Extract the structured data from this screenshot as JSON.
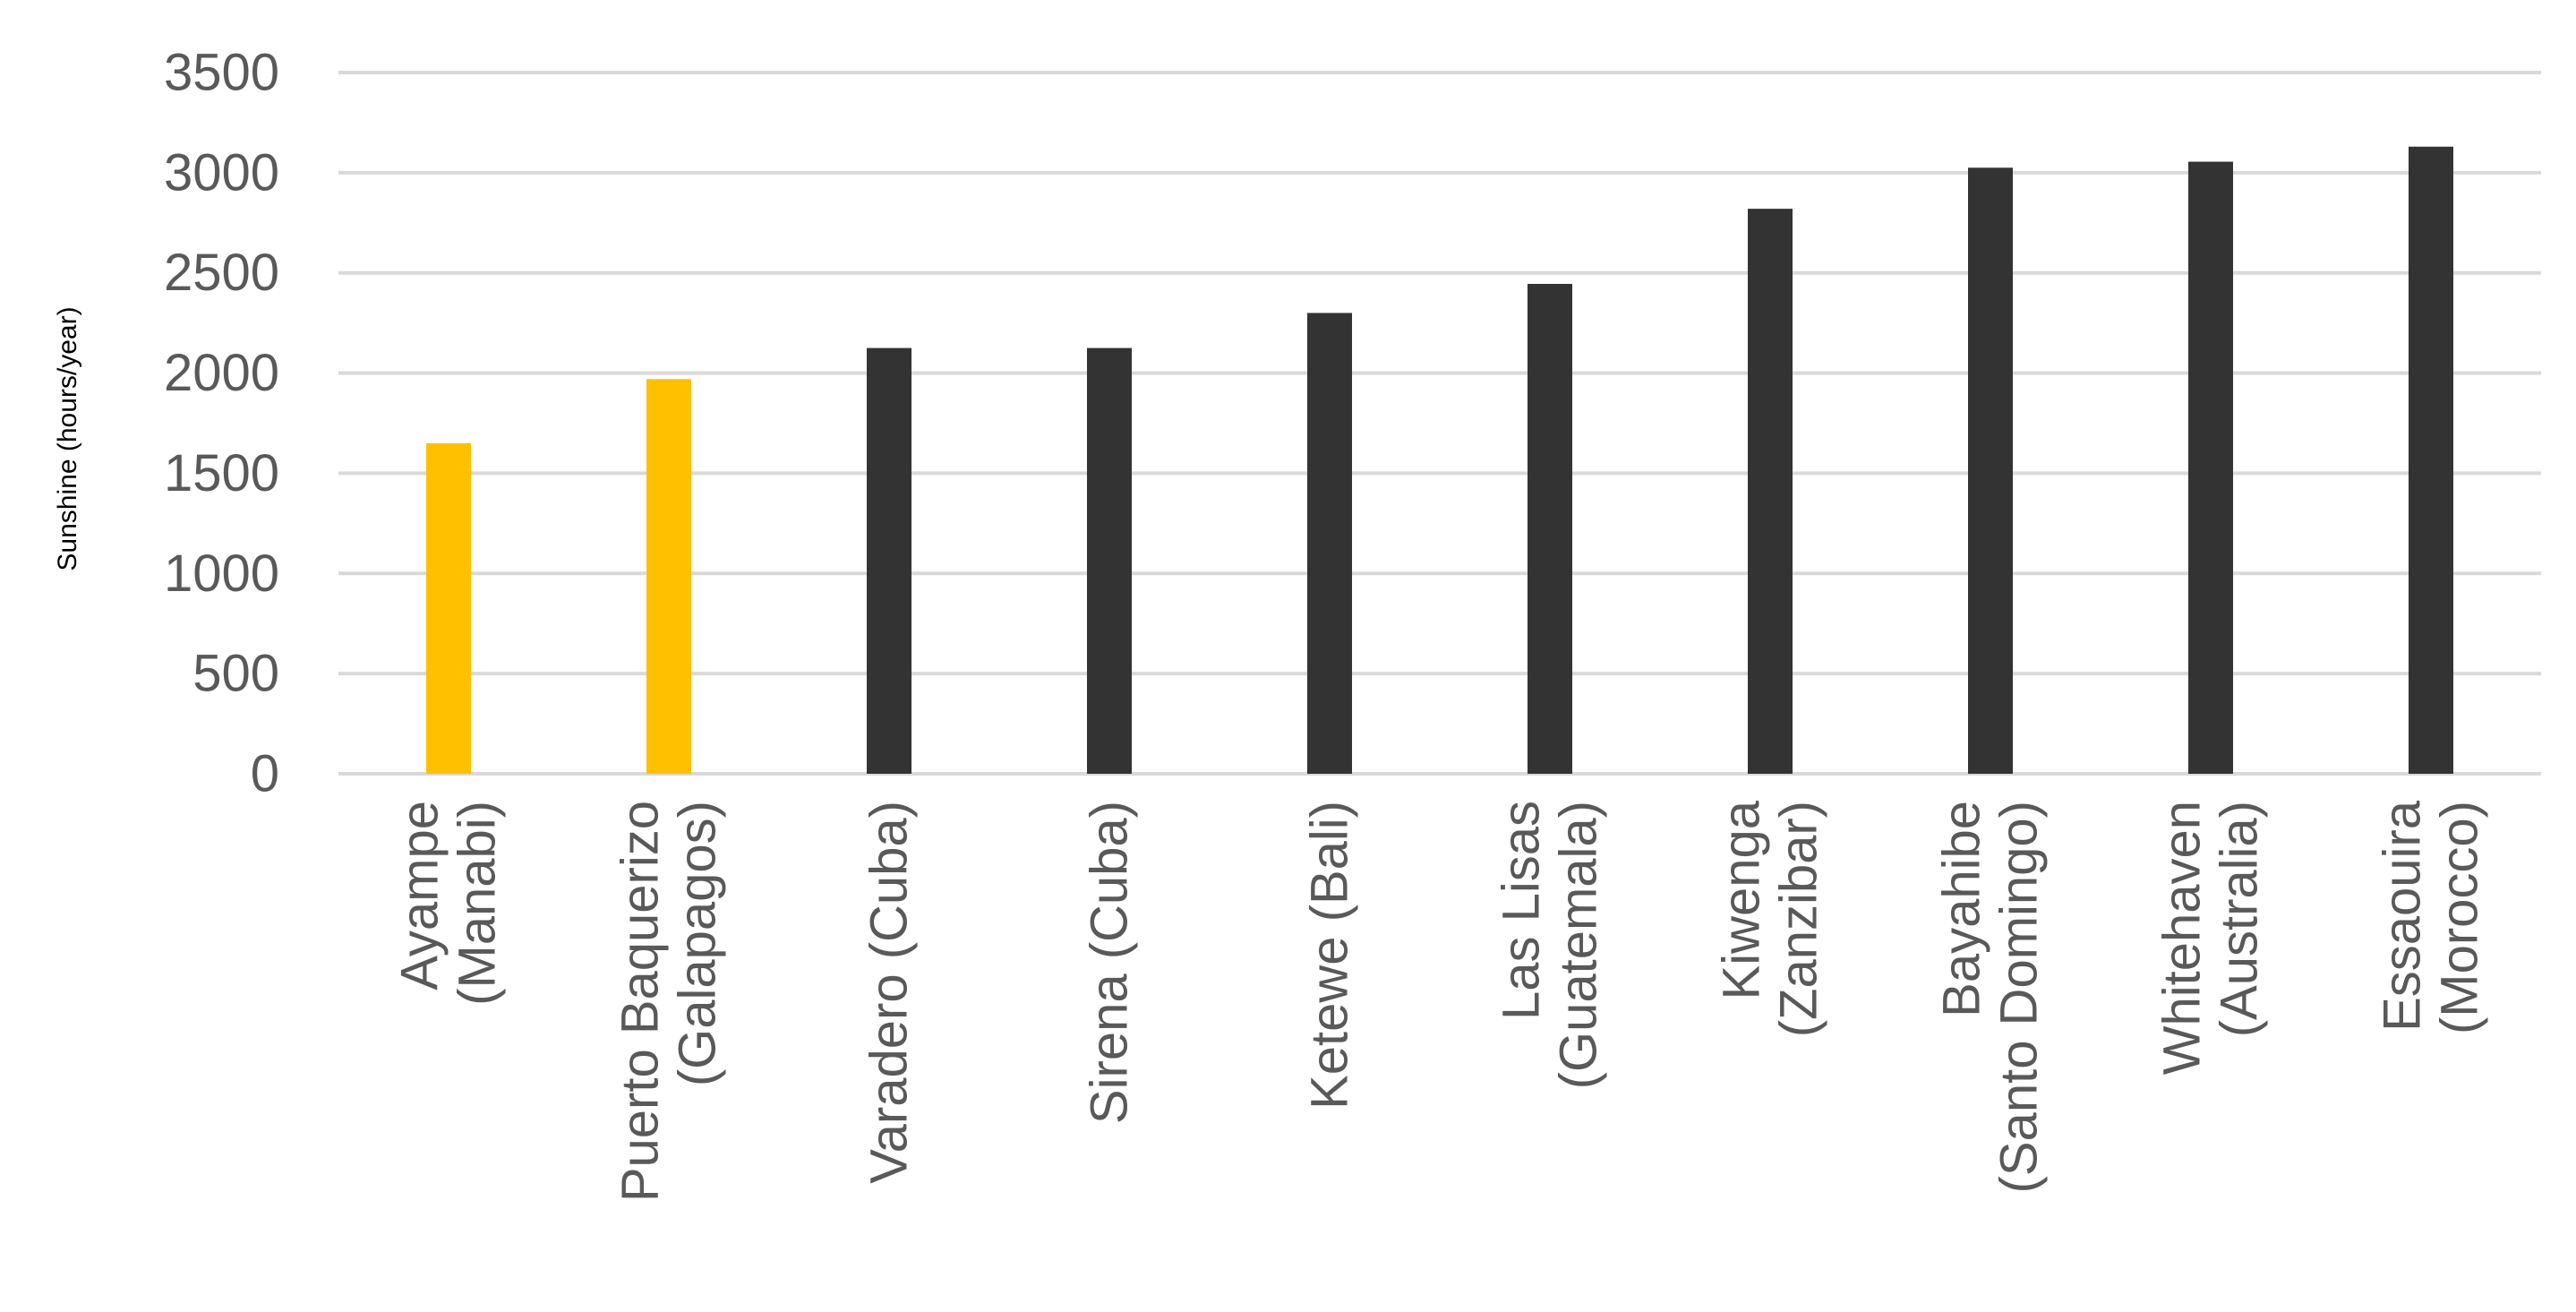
{
  "chart_data": {
    "type": "bar",
    "title": "",
    "xlabel": "",
    "ylabel": "Sunshine (hours/year)",
    "ylim": [
      0,
      3500
    ],
    "yticks": [
      "0",
      "500",
      "1000",
      "1500",
      "2000",
      "2500",
      "3000",
      "3500"
    ],
    "grid": true,
    "categories": [
      [
        "Ayampe",
        "(Manabi)"
      ],
      [
        "Puerto Baquerizo",
        "(Galapagos)"
      ],
      [
        "Varadero (Cuba)"
      ],
      [
        "Sirena (Cuba)"
      ],
      [
        "Ketewe (Bali)"
      ],
      [
        "Las Lisas",
        "(Guatemala)"
      ],
      [
        "Kiwenga",
        "(Zanzibar)"
      ],
      [
        "Bayahibe",
        "(Santo Domingo)"
      ],
      [
        "Whitehaven",
        "(Australia)"
      ],
      [
        "Essaouira",
        "(Morocco)"
      ]
    ],
    "values": [
      1650,
      1970,
      2125,
      2125,
      2300,
      2445,
      2820,
      3025,
      3055,
      3130
    ],
    "colors": [
      "#ffc000",
      "#ffc000",
      "#333333",
      "#333333",
      "#333333",
      "#333333",
      "#333333",
      "#333333",
      "#333333",
      "#333333"
    ],
    "gridline_color": "#d9d9d9",
    "tick_label_color": "#595959"
  }
}
